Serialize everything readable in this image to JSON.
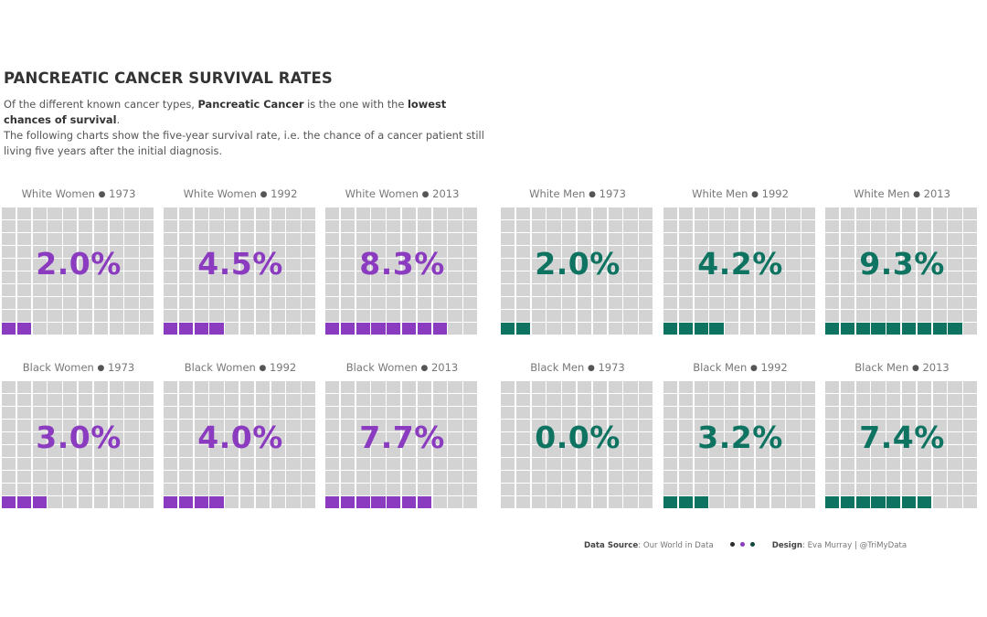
{
  "header": {
    "title": "PANCREATIC CANCER SURVIVAL RATES",
    "subtitle_parts": [
      {
        "text": "Of the different known cancer types, ",
        "bold": false
      },
      {
        "text": "Pancreatic Cancer",
        "bold": true
      },
      {
        "text": " is the one with the ",
        "bold": false
      },
      {
        "text": "lowest chances of survival",
        "bold": true
      },
      {
        "text": ".",
        "bold": false
      }
    ],
    "subtitle_line2": "The following charts show the five-year survival rate, i.e. the chance of a cancer patient still living five years after the initial diagnosis."
  },
  "colors": {
    "women": "#8a3bbf",
    "men": "#0e7361",
    "empty_cell": "#d3d3d3",
    "footer_dot_1": "#2b2b2b",
    "footer_dot_2": "#8a3bbf",
    "footer_dot_3": "#12473d"
  },
  "chart_data": [
    {
      "type": "waffle",
      "group": "White Women",
      "year": "1973",
      "value": 2.0,
      "label": "2.0%",
      "filled_cells": 2,
      "total_cells": 100,
      "color_key": "women"
    },
    {
      "type": "waffle",
      "group": "White Women",
      "year": "1992",
      "value": 4.5,
      "label": "4.5%",
      "filled_cells": 4,
      "total_cells": 100,
      "color_key": "women"
    },
    {
      "type": "waffle",
      "group": "White Women",
      "year": "2013",
      "value": 8.3,
      "label": "8.3%",
      "filled_cells": 8,
      "total_cells": 100,
      "color_key": "women"
    },
    {
      "type": "waffle",
      "group": "White Men",
      "year": "1973",
      "value": 2.0,
      "label": "2.0%",
      "filled_cells": 2,
      "total_cells": 100,
      "color_key": "men"
    },
    {
      "type": "waffle",
      "group": "White Men",
      "year": "1992",
      "value": 4.2,
      "label": "4.2%",
      "filled_cells": 4,
      "total_cells": 100,
      "color_key": "men"
    },
    {
      "type": "waffle",
      "group": "White Men",
      "year": "2013",
      "value": 9.3,
      "label": "9.3%",
      "filled_cells": 9,
      "total_cells": 100,
      "color_key": "men"
    },
    {
      "type": "waffle",
      "group": "Black Women",
      "year": "1973",
      "value": 3.0,
      "label": "3.0%",
      "filled_cells": 3,
      "total_cells": 100,
      "color_key": "women"
    },
    {
      "type": "waffle",
      "group": "Black Women",
      "year": "1992",
      "value": 4.0,
      "label": "4.0%",
      "filled_cells": 4,
      "total_cells": 100,
      "color_key": "women"
    },
    {
      "type": "waffle",
      "group": "Black Women",
      "year": "2013",
      "value": 7.7,
      "label": "7.7%",
      "filled_cells": 7,
      "total_cells": 100,
      "color_key": "women"
    },
    {
      "type": "waffle",
      "group": "Black Men",
      "year": "1973",
      "value": 0.0,
      "label": "0.0%",
      "filled_cells": 0,
      "total_cells": 100,
      "color_key": "men"
    },
    {
      "type": "waffle",
      "group": "Black Men",
      "year": "1992",
      "value": 3.2,
      "label": "3.2%",
      "filled_cells": 3,
      "total_cells": 100,
      "color_key": "men"
    },
    {
      "type": "waffle",
      "group": "Black Men",
      "year": "2013",
      "value": 7.4,
      "label": "7.4%",
      "filled_cells": 7,
      "total_cells": 100,
      "color_key": "men"
    }
  ],
  "title_separator": "●",
  "footer": {
    "source_label": "Data Source",
    "source_value": ": Our World in Data",
    "design_label": "Design",
    "design_value": ": Eva Murray | @TriMyData"
  }
}
